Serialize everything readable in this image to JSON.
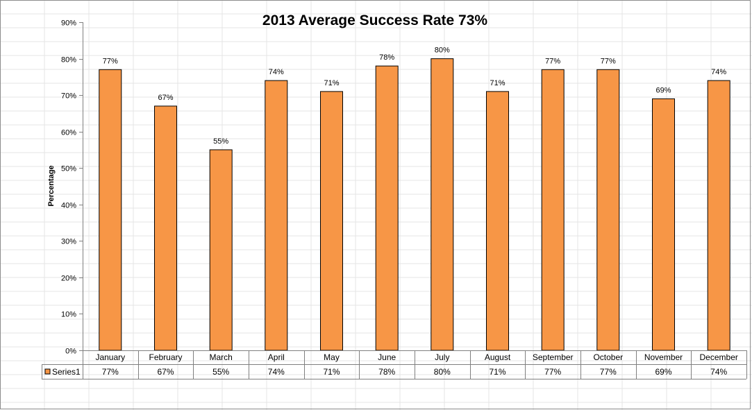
{
  "chart_data": {
    "type": "bar",
    "title": "2013 Average Success Rate 73%",
    "xlabel": "",
    "ylabel": "Percentage",
    "ylim": [
      0,
      90
    ],
    "yticks": [
      0,
      10,
      20,
      30,
      40,
      50,
      60,
      70,
      80,
      90
    ],
    "ytick_labels": [
      "0%",
      "10%",
      "20%",
      "30%",
      "40%",
      "50%",
      "60%",
      "70%",
      "80%",
      "90%"
    ],
    "grid": false,
    "legend": "data-table",
    "categories": [
      "January",
      "February",
      "March",
      "April",
      "May",
      "June",
      "July",
      "August",
      "September",
      "October",
      "November",
      "December"
    ],
    "series": [
      {
        "name": "Series1",
        "color": "#f79646",
        "values": [
          77,
          67,
          55,
          74,
          71,
          78,
          80,
          71,
          77,
          77,
          69,
          74
        ],
        "labels": [
          "77%",
          "67%",
          "55%",
          "74%",
          "71%",
          "78%",
          "80%",
          "71%",
          "77%",
          "77%",
          "69%",
          "74%"
        ]
      }
    ]
  }
}
